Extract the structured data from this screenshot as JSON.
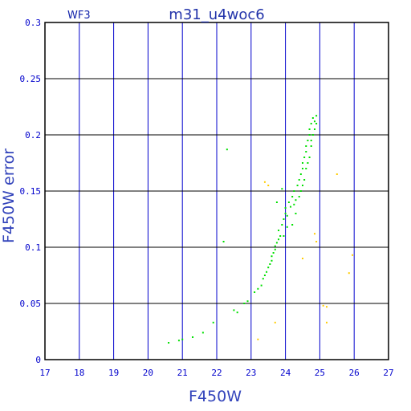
{
  "chart_data": {
    "type": "scatter",
    "title": "m31_u4woc6",
    "corner_label": "WF3",
    "xlabel": "F450W",
    "ylabel": "F450W error",
    "xlim": [
      17,
      27
    ],
    "ylim": [
      0,
      0.3
    ],
    "xticks": [
      17,
      18,
      19,
      20,
      21,
      22,
      23,
      24,
      25,
      26,
      27
    ],
    "yticks": [
      0,
      0.05,
      0.1,
      0.15,
      0.2,
      0.25,
      0.3
    ],
    "ytick_labels": [
      "0",
      "0.05",
      "0.1",
      "0.15",
      "0.2",
      "0.25",
      "0.3"
    ],
    "grid": true,
    "series": [
      {
        "color": "#00e000",
        "points": [
          [
            20.6,
            0.015
          ],
          [
            20.9,
            0.017
          ],
          [
            21.0,
            0.018
          ],
          [
            21.3,
            0.02
          ],
          [
            21.6,
            0.024
          ],
          [
            21.9,
            0.033
          ],
          [
            22.3,
            0.187
          ],
          [
            22.5,
            0.044
          ],
          [
            22.6,
            0.042
          ],
          [
            22.8,
            0.05
          ],
          [
            22.9,
            0.052
          ],
          [
            23.1,
            0.06
          ],
          [
            23.2,
            0.063
          ],
          [
            23.3,
            0.066
          ],
          [
            23.35,
            0.072
          ],
          [
            23.4,
            0.075
          ],
          [
            23.45,
            0.078
          ],
          [
            23.5,
            0.082
          ],
          [
            23.55,
            0.085
          ],
          [
            23.6,
            0.088
          ],
          [
            23.6,
            0.092
          ],
          [
            23.65,
            0.095
          ],
          [
            23.7,
            0.098
          ],
          [
            23.7,
            0.101
          ],
          [
            23.75,
            0.104
          ],
          [
            23.8,
            0.107
          ],
          [
            23.85,
            0.11
          ],
          [
            23.8,
            0.115
          ],
          [
            23.9,
            0.12
          ],
          [
            23.95,
            0.125
          ],
          [
            24.0,
            0.13
          ],
          [
            24.0,
            0.135
          ],
          [
            24.05,
            0.128
          ],
          [
            24.1,
            0.14
          ],
          [
            24.15,
            0.136
          ],
          [
            24.2,
            0.145
          ],
          [
            24.25,
            0.15
          ],
          [
            24.3,
            0.142
          ],
          [
            24.35,
            0.155
          ],
          [
            24.4,
            0.16
          ],
          [
            24.45,
            0.165
          ],
          [
            24.5,
            0.17
          ],
          [
            24.5,
            0.175
          ],
          [
            24.55,
            0.18
          ],
          [
            24.6,
            0.185
          ],
          [
            24.6,
            0.19
          ],
          [
            24.65,
            0.195
          ],
          [
            24.7,
            0.2
          ],
          [
            24.7,
            0.205
          ],
          [
            24.75,
            0.21
          ],
          [
            24.8,
            0.215
          ],
          [
            24.85,
            0.212
          ],
          [
            24.9,
            0.217
          ],
          [
            24.8,
            0.2
          ],
          [
            24.75,
            0.19
          ],
          [
            24.85,
            0.205
          ],
          [
            24.7,
            0.18
          ],
          [
            24.6,
            0.17
          ],
          [
            24.55,
            0.16
          ],
          [
            24.45,
            0.15
          ],
          [
            24.3,
            0.13
          ],
          [
            24.2,
            0.12
          ],
          [
            24.5,
            0.155
          ],
          [
            24.65,
            0.175
          ],
          [
            24.75,
            0.195
          ],
          [
            24.9,
            0.21
          ],
          [
            24.4,
            0.145
          ],
          [
            24.25,
            0.138
          ],
          [
            24.05,
            0.118
          ],
          [
            23.95,
            0.11
          ],
          [
            23.9,
            0.152
          ],
          [
            23.75,
            0.14
          ],
          [
            22.2,
            0.105
          ]
        ]
      },
      {
        "color": "#ffcc00",
        "points": [
          [
            23.2,
            0.018
          ],
          [
            23.4,
            0.158
          ],
          [
            23.7,
            0.033
          ],
          [
            24.5,
            0.09
          ],
          [
            24.85,
            0.112
          ],
          [
            24.9,
            0.105
          ],
          [
            25.1,
            0.048
          ],
          [
            25.2,
            0.047
          ],
          [
            25.2,
            0.033
          ],
          [
            25.5,
            0.165
          ],
          [
            25.85,
            0.077
          ],
          [
            25.95,
            0.093
          ],
          [
            23.5,
            0.155
          ]
        ]
      }
    ]
  }
}
